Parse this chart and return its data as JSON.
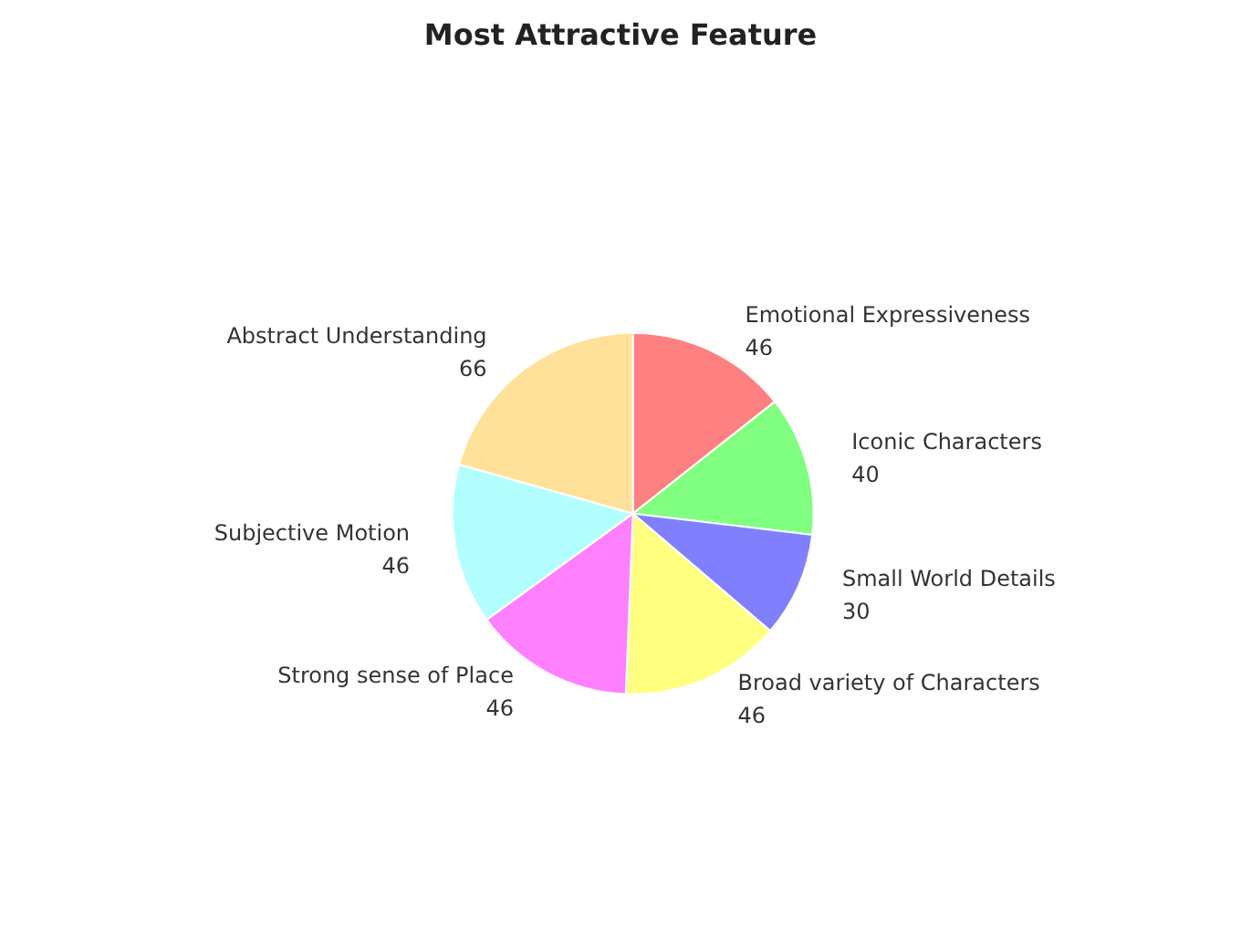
{
  "chart_data": {
    "type": "pie",
    "title": "Most Attractive Feature",
    "categories": [
      "Emotional Expressiveness",
      "Iconic Characters",
      "Small World Details",
      "Broad variety of Characters",
      "Strong sense of Place",
      "Subjective Motion",
      "Abstract Understanding"
    ],
    "values": [
      46,
      40,
      30,
      46,
      46,
      46,
      66
    ],
    "colors": [
      "#ff8080",
      "#80ff80",
      "#8080ff",
      "#ffff80",
      "#ff80ff",
      "#b3ffff",
      "#ffe199"
    ],
    "data_labels": true,
    "legend": false
  }
}
